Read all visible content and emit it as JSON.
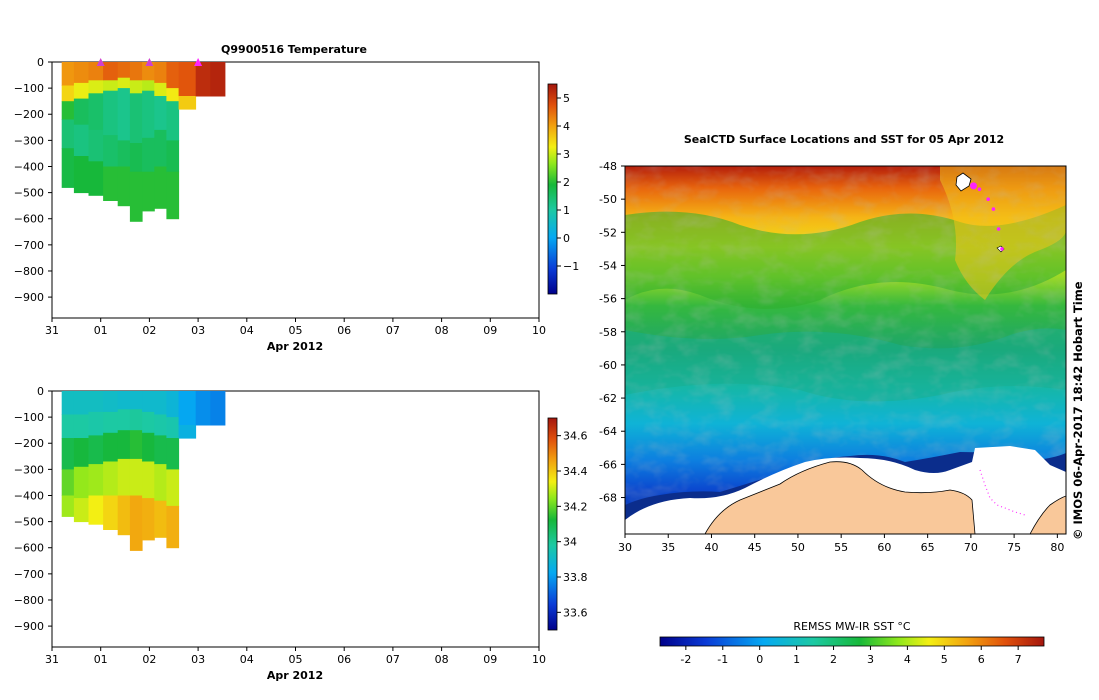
{
  "chart_data": [
    {
      "type": "heatmap",
      "title": "Q9900516  Temperature",
      "xlabel": "Apr 2012",
      "ylabel": "",
      "x_ticks": [
        "31",
        "01",
        "02",
        "03",
        "04",
        "05",
        "06",
        "07",
        "08",
        "09",
        "10"
      ],
      "y_ticks": [
        "0",
        "−100",
        "−200",
        "−300",
        "−400",
        "−500",
        "−600",
        "−700",
        "−800",
        "−900"
      ],
      "ylim": [
        -980,
        0
      ],
      "colorbar": {
        "min": -2,
        "max": 5.5,
        "ticks": [
          "5",
          "4",
          "3",
          "2",
          "1",
          "0",
          "−1"
        ]
      },
      "x_unit_days_from_31_mar": true,
      "profiles": [
        {
          "day": 0.2,
          "layers": [
            [
              0,
              90,
              4.1
            ],
            [
              90,
              150,
              3.5
            ],
            [
              150,
              220,
              2.0
            ],
            [
              220,
              330,
              1.4
            ],
            [
              330,
              480,
              1.8
            ]
          ]
        },
        {
          "day": 0.45,
          "layers": [
            [
              0,
              80,
              4.2
            ],
            [
              80,
              140,
              3.2
            ],
            [
              140,
              240,
              1.6
            ],
            [
              240,
              360,
              1.3
            ],
            [
              360,
              500,
              1.9
            ]
          ]
        },
        {
          "day": 0.75,
          "layers": [
            [
              0,
              70,
              4.3
            ],
            [
              70,
              120,
              3.1
            ],
            [
              120,
              260,
              1.5
            ],
            [
              260,
              380,
              1.4
            ],
            [
              380,
              510,
              1.9
            ]
          ]
        },
        {
          "day": 1.05,
          "layers": [
            [
              0,
              70,
              4.6
            ],
            [
              70,
              110,
              3.0
            ],
            [
              110,
              280,
              1.3
            ],
            [
              280,
              400,
              1.5
            ],
            [
              400,
              530,
              2.0
            ]
          ]
        },
        {
          "day": 1.35,
          "layers": [
            [
              0,
              60,
              4.5
            ],
            [
              60,
              100,
              3.1
            ],
            [
              100,
              300,
              1.2
            ],
            [
              300,
              400,
              1.6
            ],
            [
              400,
              550,
              2.0
            ]
          ]
        },
        {
          "day": 1.6,
          "layers": [
            [
              0,
              70,
              4.4
            ],
            [
              70,
              120,
              3.0
            ],
            [
              120,
              310,
              1.4
            ],
            [
              310,
              420,
              1.7
            ],
            [
              420,
              610,
              2.0
            ]
          ]
        },
        {
          "day": 1.85,
          "layers": [
            [
              0,
              70,
              4.2
            ],
            [
              70,
              110,
              2.9
            ],
            [
              110,
              290,
              1.3
            ],
            [
              290,
              420,
              1.6
            ],
            [
              420,
              570,
              2.0
            ]
          ]
        },
        {
          "day": 2.1,
          "layers": [
            [
              0,
              80,
              4.3
            ],
            [
              80,
              130,
              3.1
            ],
            [
              130,
              260,
              1.2
            ],
            [
              260,
              400,
              1.6
            ],
            [
              400,
              560,
              2.0
            ]
          ]
        },
        {
          "day": 2.35,
          "layers": [
            [
              0,
              100,
              4.6
            ],
            [
              100,
              150,
              3.3
            ],
            [
              150,
              300,
              1.3
            ],
            [
              300,
              420,
              1.7
            ],
            [
              420,
              600,
              2.0
            ]
          ]
        },
        {
          "day": 2.6,
          "layers": [
            [
              0,
              130,
              4.7
            ],
            [
              130,
              180,
              3.6
            ]
          ]
        },
        {
          "day": 2.95,
          "layers": [
            [
              0,
              130,
              5.2
            ]
          ]
        },
        {
          "day": 3.25,
          "layers": [
            [
              0,
              130,
              5.3
            ]
          ]
        }
      ]
    },
    {
      "type": "heatmap",
      "title": "",
      "xlabel": "Apr 2012",
      "ylabel": "",
      "x_ticks": [
        "31",
        "01",
        "02",
        "03",
        "04",
        "05",
        "06",
        "07",
        "08",
        "09",
        "10"
      ],
      "y_ticks": [
        "0",
        "−100",
        "−200",
        "−300",
        "−400",
        "−500",
        "−600",
        "−700",
        "−800",
        "−900"
      ],
      "ylim": [
        -980,
        0
      ],
      "colorbar": {
        "min": 33.5,
        "max": 34.7,
        "ticks": [
          "34.6",
          "34.4",
          "34.2",
          "34",
          "33.8",
          "33.6"
        ]
      },
      "profiles": [
        {
          "day": 0.2,
          "layers": [
            [
              0,
              90,
              33.92
            ],
            [
              90,
              180,
              33.98
            ],
            [
              180,
              300,
              34.1
            ],
            [
              300,
              400,
              34.2
            ],
            [
              400,
              480,
              34.26
            ]
          ]
        },
        {
          "day": 0.45,
          "layers": [
            [
              0,
              90,
              33.92
            ],
            [
              90,
              180,
              33.98
            ],
            [
              180,
              290,
              34.12
            ],
            [
              290,
              410,
              34.25
            ],
            [
              410,
              500,
              34.3
            ]
          ]
        },
        {
          "day": 0.75,
          "layers": [
            [
              0,
              80,
              33.92
            ],
            [
              80,
              170,
              33.97
            ],
            [
              170,
              280,
              34.1
            ],
            [
              280,
              400,
              34.26
            ],
            [
              400,
              510,
              34.34
            ]
          ]
        },
        {
          "day": 1.05,
          "layers": [
            [
              0,
              80,
              33.91
            ],
            [
              80,
              160,
              33.98
            ],
            [
              160,
              270,
              34.12
            ],
            [
              270,
              400,
              34.28
            ],
            [
              400,
              530,
              34.38
            ]
          ]
        },
        {
          "day": 1.35,
          "layers": [
            [
              0,
              70,
              33.9
            ],
            [
              70,
              150,
              33.98
            ],
            [
              150,
              260,
              34.12
            ],
            [
              260,
              400,
              34.3
            ],
            [
              400,
              550,
              34.42
            ]
          ]
        },
        {
          "day": 1.6,
          "layers": [
            [
              0,
              70,
              33.9
            ],
            [
              70,
              150,
              33.99
            ],
            [
              150,
              260,
              34.14
            ],
            [
              260,
              400,
              34.3
            ],
            [
              400,
              610,
              34.45
            ]
          ]
        },
        {
          "day": 1.85,
          "layers": [
            [
              0,
              80,
              33.9
            ],
            [
              80,
              160,
              33.98
            ],
            [
              160,
              270,
              34.12
            ],
            [
              270,
              410,
              34.3
            ],
            [
              410,
              570,
              34.44
            ]
          ]
        },
        {
          "day": 2.1,
          "layers": [
            [
              0,
              90,
              33.9
            ],
            [
              90,
              170,
              33.97
            ],
            [
              170,
              280,
              34.1
            ],
            [
              280,
              420,
              34.28
            ],
            [
              420,
              560,
              34.42
            ]
          ]
        },
        {
          "day": 2.35,
          "layers": [
            [
              0,
              100,
              33.88
            ],
            [
              100,
              180,
              33.96
            ],
            [
              180,
              300,
              34.1
            ],
            [
              300,
              440,
              34.3
            ],
            [
              440,
              600,
              34.44
            ]
          ]
        },
        {
          "day": 2.6,
          "layers": [
            [
              0,
              130,
              33.82
            ],
            [
              130,
              180,
              33.86
            ]
          ]
        },
        {
          "day": 2.95,
          "layers": [
            [
              0,
              130,
              33.78
            ]
          ]
        },
        {
          "day": 3.25,
          "layers": [
            [
              0,
              130,
              33.76
            ]
          ]
        }
      ]
    },
    {
      "type": "heatmap",
      "title": "SealCTD Surface Locations and SST for 05 Apr 2012",
      "xlabel": "",
      "ylabel": "",
      "xlim": [
        30,
        81
      ],
      "ylim": [
        -70.2,
        -48
      ],
      "x_ticks": [
        "30",
        "35",
        "40",
        "45",
        "50",
        "55",
        "60",
        "65",
        "70",
        "75",
        "80"
      ],
      "y_ticks": [
        "-48",
        "-50",
        "-52",
        "-54",
        "-56",
        "-58",
        "-60",
        "-62",
        "-64",
        "-66",
        "-68"
      ],
      "colorbar": {
        "label": "REMSS MW-IR SST °C",
        "min": -2.7,
        "max": 7.7,
        "ticks": [
          "-2",
          "-1",
          "0",
          "1",
          "2",
          "3",
          "4",
          "5",
          "6",
          "7"
        ]
      },
      "track": [
        [
          70.3,
          -49.2
        ],
        [
          71.0,
          -49.4
        ],
        [
          72.0,
          -50.0
        ],
        [
          72.6,
          -50.6
        ],
        [
          73.2,
          -51.8
        ],
        [
          73.6,
          -53.0
        ]
      ],
      "copyright": "© IMOS 06-Apr-2017 18:42 Hobart Time"
    }
  ]
}
